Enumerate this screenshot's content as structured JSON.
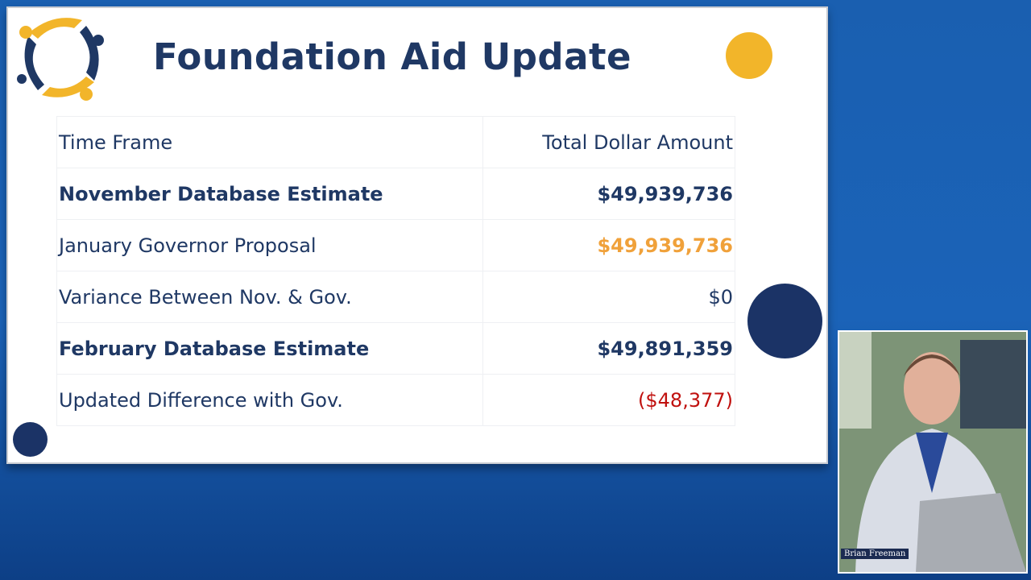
{
  "slide": {
    "title": "Foundation Aid Update",
    "table": {
      "header": [
        "Time Frame",
        "Total Dollar Amount"
      ],
      "rows": [
        [
          "November Database Estimate",
          "$49,939,736"
        ],
        [
          "January Governor Proposal",
          "$49,939,736"
        ],
        [
          "Variance Between Nov. & Gov.",
          "$0"
        ],
        [
          "February Database Estimate",
          "$49,891,359"
        ],
        [
          "Updated Difference with Gov.",
          "($48,377)"
        ]
      ]
    }
  },
  "webcam": {
    "name": "Brian Freeman"
  }
}
